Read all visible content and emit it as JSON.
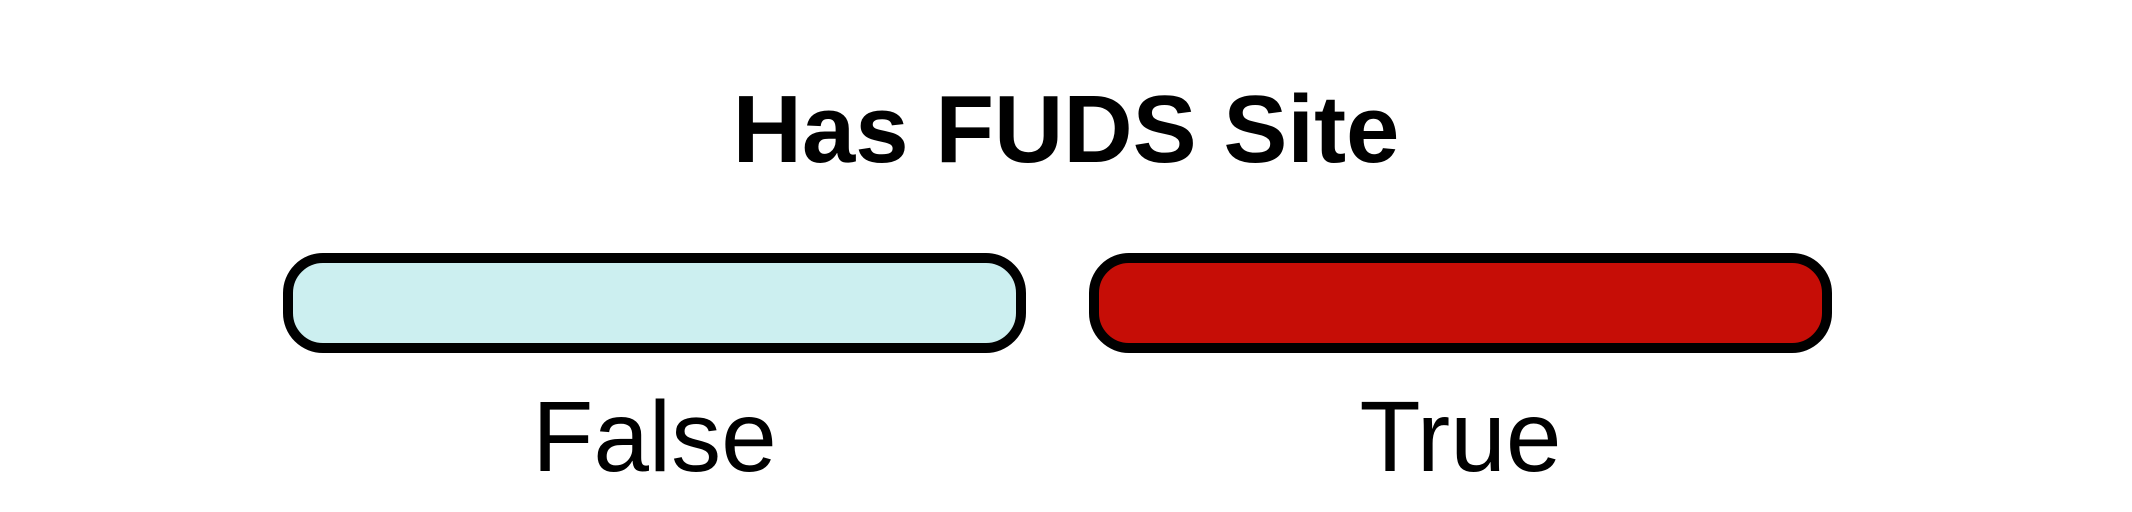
{
  "legend": {
    "title": "Has FUDS Site",
    "items": [
      {
        "label": "False",
        "color": "#CCEFF0"
      },
      {
        "label": "True",
        "color": "#C60D06"
      }
    ]
  }
}
